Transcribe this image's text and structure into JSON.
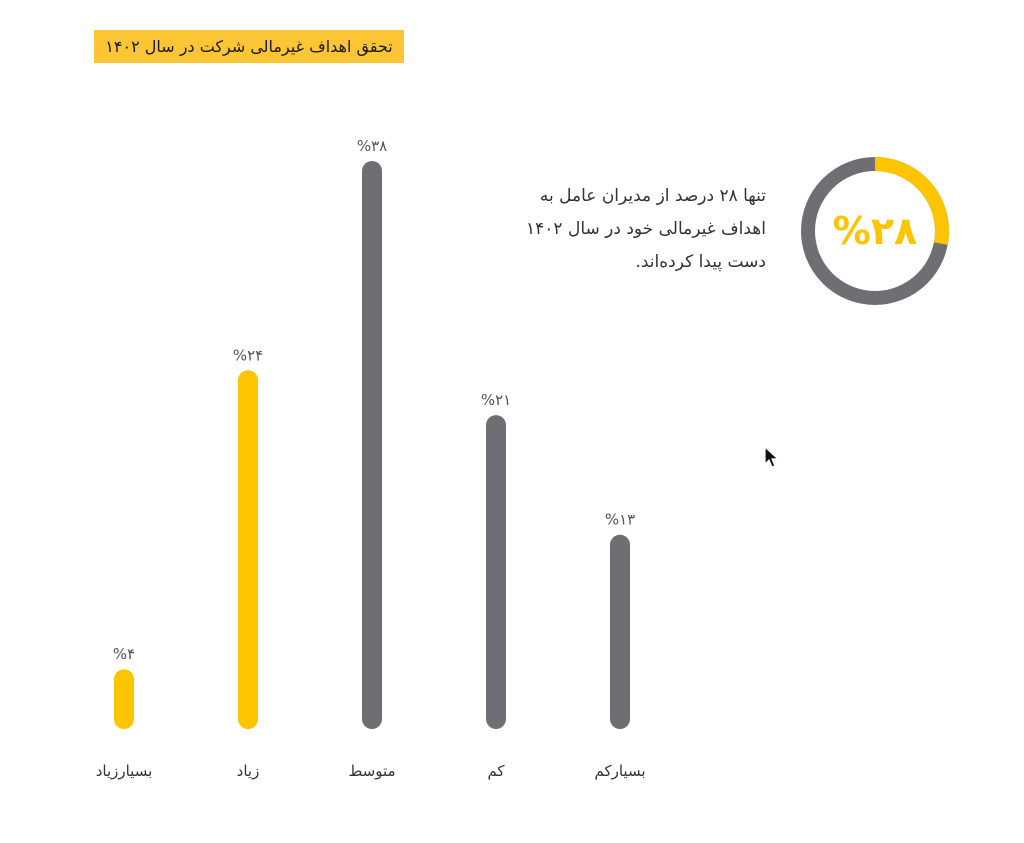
{
  "title": "تحقق اهداف غیرمالی شرکت در سال ۱۴۰۲",
  "summary": {
    "value_label": "%۲۸",
    "fraction": 0.28,
    "text": "تنها ۲۸ درصد از مدیران عامل به\nاهداف غیرمالی خود در سال ۱۴۰۲\nدست پیدا کرده‌اند."
  },
  "colors": {
    "accent": "#FCC500",
    "neutral": "#6F6E72",
    "banner": "#FCC535"
  },
  "chart_data": {
    "type": "bar",
    "categories": [
      "بسیارزیاد",
      "زیاد",
      "متوسط",
      "کم",
      "بسیارکم"
    ],
    "values": [
      4,
      24,
      38,
      21,
      13
    ],
    "value_labels": [
      "%۴",
      "%۲۴",
      "%۳۸",
      "%۲۱",
      "%۱۳"
    ],
    "highlight": [
      true,
      true,
      false,
      false,
      false
    ],
    "ylim": [
      0,
      38
    ],
    "title": "تحقق اهداف غیرمالی شرکت در سال ۱۴۰۲",
    "xlabel": "",
    "ylabel": "",
    "grid": false
  }
}
